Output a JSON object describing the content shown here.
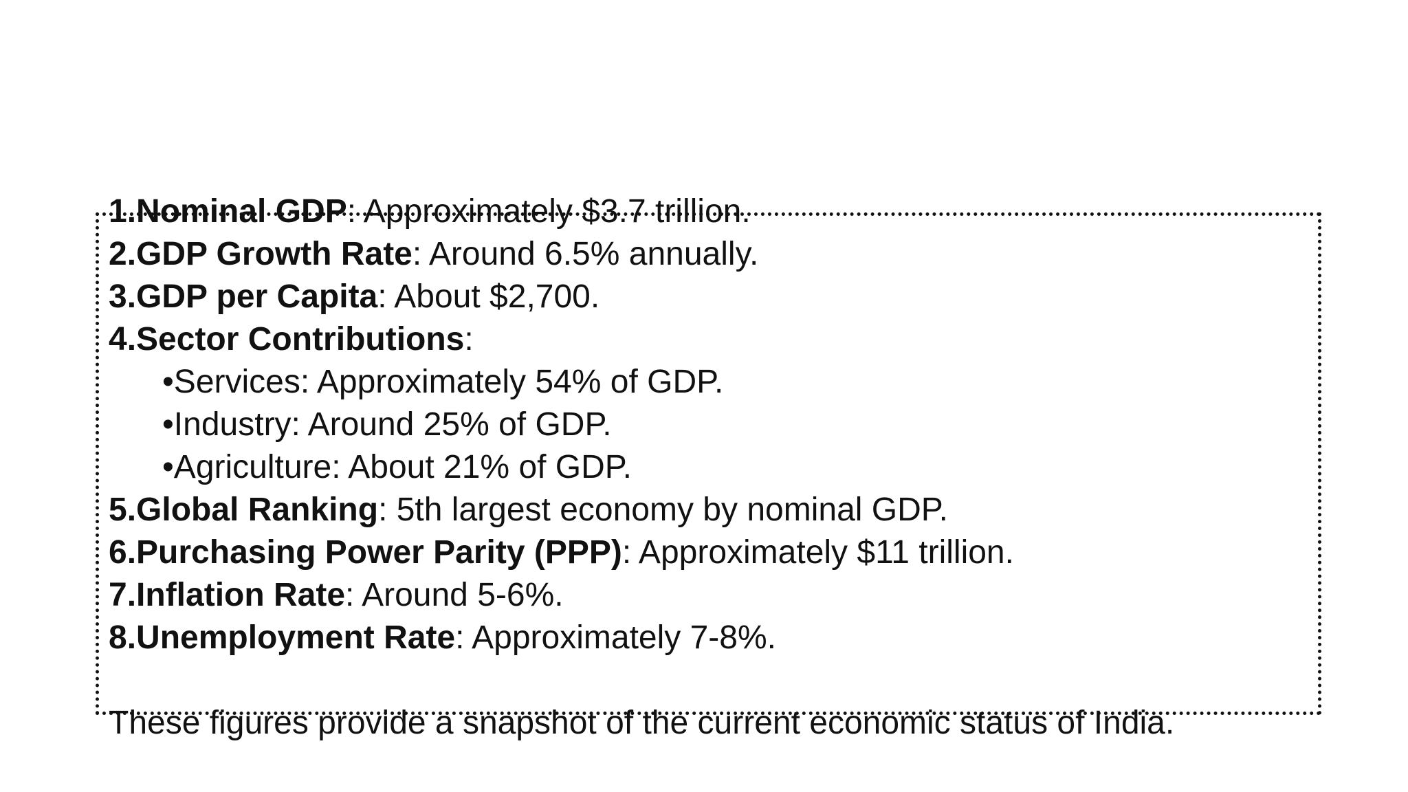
{
  "items": [
    {
      "number": "1.",
      "label": "Nominal GDP",
      "text": ": Approximately $3.7 trillion."
    },
    {
      "number": "2.",
      "label": "GDP Growth Rate",
      "text": ": Around 6.5% annually."
    },
    {
      "number": "3.",
      "label": "GDP per Capita",
      "text": ": About $2,700."
    },
    {
      "number": "4.",
      "label": "Sector Contributions",
      "text": ":"
    }
  ],
  "sectors": [
    "•Services: Approximately 54% of GDP.",
    "•Industry: Around 25% of GDP.",
    "•Agriculture: About 21% of GDP."
  ],
  "items_after": [
    {
      "number": "5.",
      "label": "Global Ranking",
      "text": ": 5th largest economy by nominal GDP."
    },
    {
      "number": "6.",
      "label": "Purchasing Power Parity (PPP)",
      "text": ": Approximately $11 trillion."
    },
    {
      "number": "7.",
      "label": "Inflation Rate",
      "text": ": Around 5-6%."
    },
    {
      "number": "8.",
      "label": "Unemployment Rate",
      "text": ": Approximately 7-8%."
    }
  ],
  "closing": "These figures provide a snapshot of the current economic status of India."
}
